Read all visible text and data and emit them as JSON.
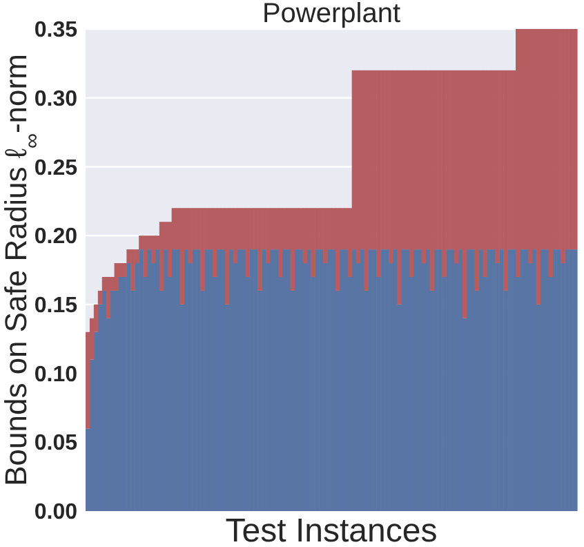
{
  "chart_data": {
    "type": "bar",
    "stacked": true,
    "title": "Powerplant",
    "xlabel": "Test Instances",
    "ylabel": "Bounds on Safe Radius ℓ$_{∞}$-norm",
    "categories": [
      null,
      null,
      null,
      null,
      null,
      null,
      null,
      null,
      null,
      null,
      null,
      null,
      null,
      null,
      null,
      null,
      null,
      null,
      null,
      null,
      null,
      null,
      null,
      null,
      null,
      null,
      null,
      null,
      null,
      null,
      null,
      null,
      null,
      null,
      null,
      null,
      null,
      null,
      null,
      null,
      null,
      null,
      null,
      null,
      null,
      null,
      null,
      null,
      null,
      null,
      null,
      null,
      null,
      null,
      null,
      null,
      null,
      null,
      null,
      null,
      null,
      null,
      null,
      null,
      null,
      null,
      null,
      null,
      null,
      null,
      null,
      null,
      null,
      null,
      null,
      null,
      null,
      null,
      null,
      null,
      null,
      null,
      null,
      null,
      null,
      null,
      null,
      null,
      null,
      null,
      null,
      null,
      null,
      null,
      null,
      null,
      null,
      null,
      null,
      null,
      null,
      null,
      null,
      null,
      null,
      null,
      null,
      null,
      null,
      null,
      null,
      null,
      null,
      null,
      null,
      null,
      null,
      null,
      null,
      null
    ],
    "series": [
      {
        "color": "#5975a4",
        "values": [
          0.06,
          0.11,
          0.13,
          0.15,
          0.16,
          0.14,
          0.16,
          0.16,
          0.17,
          0.17,
          0.18,
          0.16,
          0.18,
          0.19,
          0.17,
          0.19,
          0.18,
          0.19,
          0.16,
          0.19,
          0.17,
          0.19,
          0.19,
          0.15,
          0.19,
          0.18,
          0.19,
          0.19,
          0.16,
          0.19,
          0.19,
          0.17,
          0.19,
          0.19,
          0.15,
          0.19,
          0.18,
          0.19,
          0.19,
          0.17,
          0.19,
          0.19,
          0.16,
          0.19,
          0.18,
          0.19,
          0.19,
          0.17,
          0.19,
          0.19,
          0.16,
          0.19,
          0.19,
          0.18,
          0.19,
          0.17,
          0.19,
          0.19,
          0.18,
          0.19,
          0.19,
          0.16,
          0.19,
          0.19,
          0.17,
          0.19,
          0.18,
          0.19,
          0.16,
          0.19,
          0.19,
          0.17,
          0.19,
          0.19,
          0.18,
          0.19,
          0.15,
          0.19,
          0.19,
          0.17,
          0.19,
          0.19,
          0.18,
          0.19,
          0.16,
          0.19,
          0.19,
          0.17,
          0.19,
          0.19,
          0.18,
          0.19,
          0.14,
          0.19,
          0.19,
          0.16,
          0.19,
          0.17,
          0.19,
          0.19,
          0.18,
          0.19,
          0.16,
          0.19,
          0.19,
          0.17,
          0.19,
          0.19,
          0.18,
          0.19,
          0.15,
          0.19,
          0.19,
          0.17,
          0.19,
          0.19,
          0.18,
          0.19,
          0.19,
          0.19
        ]
      },
      {
        "color": "#b55d60",
        "values": [
          0.07,
          0.03,
          0.02,
          0.01,
          0.01,
          0.03,
          0.01,
          0.02,
          0.01,
          0.01,
          0.01,
          0.03,
          0.01,
          0.01,
          0.03,
          0.01,
          0.02,
          0.01,
          0.05,
          0.02,
          0.04,
          0.03,
          0.03,
          0.07,
          0.03,
          0.04,
          0.03,
          0.03,
          0.06,
          0.03,
          0.03,
          0.05,
          0.03,
          0.03,
          0.07,
          0.03,
          0.04,
          0.03,
          0.03,
          0.05,
          0.03,
          0.03,
          0.06,
          0.03,
          0.04,
          0.03,
          0.03,
          0.05,
          0.03,
          0.03,
          0.06,
          0.03,
          0.03,
          0.04,
          0.03,
          0.05,
          0.03,
          0.03,
          0.04,
          0.03,
          0.03,
          0.06,
          0.03,
          0.03,
          0.05,
          0.13,
          0.14,
          0.13,
          0.16,
          0.13,
          0.13,
          0.15,
          0.13,
          0.13,
          0.14,
          0.13,
          0.17,
          0.13,
          0.13,
          0.15,
          0.13,
          0.13,
          0.14,
          0.13,
          0.16,
          0.13,
          0.13,
          0.15,
          0.13,
          0.13,
          0.14,
          0.13,
          0.18,
          0.13,
          0.13,
          0.16,
          0.13,
          0.15,
          0.13,
          0.13,
          0.14,
          0.13,
          0.16,
          0.13,
          0.13,
          0.18,
          0.16,
          0.16,
          0.17,
          0.16,
          0.2,
          0.16,
          0.16,
          0.18,
          0.16,
          0.16,
          0.17,
          0.16,
          0.16,
          0.16
        ]
      }
    ],
    "ylim": [
      0,
      0.35
    ],
    "yticks": [
      {
        "value": 0,
        "label": "0.00"
      },
      {
        "value": 0.05,
        "label": "0.05"
      },
      {
        "value": 0.1,
        "label": "0.10"
      },
      {
        "value": 0.15,
        "label": "0.15"
      },
      {
        "value": 0.2,
        "label": "0.20"
      },
      {
        "value": 0.25,
        "label": "0.25"
      },
      {
        "value": 0.3,
        "label": "0.30"
      },
      {
        "value": 0.35,
        "label": "0.35"
      }
    ],
    "grid": "y"
  }
}
